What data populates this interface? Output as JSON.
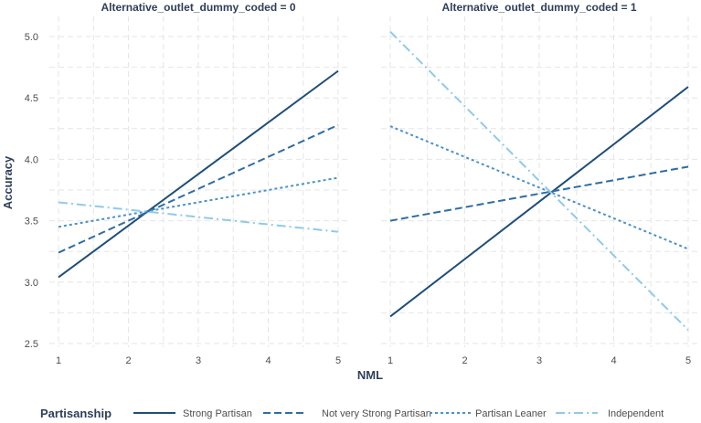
{
  "chart_data": {
    "type": "line",
    "x_label": "NML",
    "y_label": "Accuracy",
    "x_ticks": [
      "1",
      "2",
      "3",
      "4",
      "5"
    ],
    "y_ticks": [
      "2.5",
      "3.0",
      "3.5",
      "4.0",
      "4.5",
      "5.0"
    ],
    "xlim": [
      1,
      5
    ],
    "ylim": [
      2.5,
      5.1
    ],
    "grid": true,
    "legend": {
      "title": "Partisanship",
      "position": "bottom",
      "entries": [
        "Strong Partisan",
        "Not very Strong Partisan",
        "Partisan Leaner",
        "Independent"
      ]
    },
    "series_styles": [
      {
        "name": "Strong Partisan",
        "color": "#1f4e79",
        "dash": "solid"
      },
      {
        "name": "Not very Strong Partisan",
        "color": "#2e6da4",
        "dash": "dashed"
      },
      {
        "name": "Partisan Leaner",
        "color": "#4a90cc",
        "dash": "dotted"
      },
      {
        "name": "Independent",
        "color": "#8fcaea",
        "dash": "dotdash"
      }
    ],
    "panels": [
      {
        "title": "Alternative_outlet_dummy_coded = 0",
        "series": [
          {
            "name": "Strong Partisan",
            "x": [
              1,
              5
            ],
            "y": [
              3.04,
              4.72
            ]
          },
          {
            "name": "Not very Strong Partisan",
            "x": [
              1,
              5
            ],
            "y": [
              3.24,
              4.28
            ]
          },
          {
            "name": "Partisan Leaner",
            "x": [
              1,
              5
            ],
            "y": [
              3.45,
              3.85
            ]
          },
          {
            "name": "Independent",
            "x": [
              1,
              5
            ],
            "y": [
              3.65,
              3.41
            ]
          }
        ]
      },
      {
        "title": "Alternative_outlet_dummy_coded = 1",
        "series": [
          {
            "name": "Strong Partisan",
            "x": [
              1,
              5
            ],
            "y": [
              2.72,
              4.59
            ]
          },
          {
            "name": "Not very Strong Partisan",
            "x": [
              1,
              5
            ],
            "y": [
              3.5,
              3.94
            ]
          },
          {
            "name": "Partisan Leaner",
            "x": [
              1,
              5
            ],
            "y": [
              4.27,
              3.27
            ]
          },
          {
            "name": "Independent",
            "x": [
              1,
              5
            ],
            "y": [
              5.04,
              2.61
            ]
          }
        ]
      }
    ]
  }
}
